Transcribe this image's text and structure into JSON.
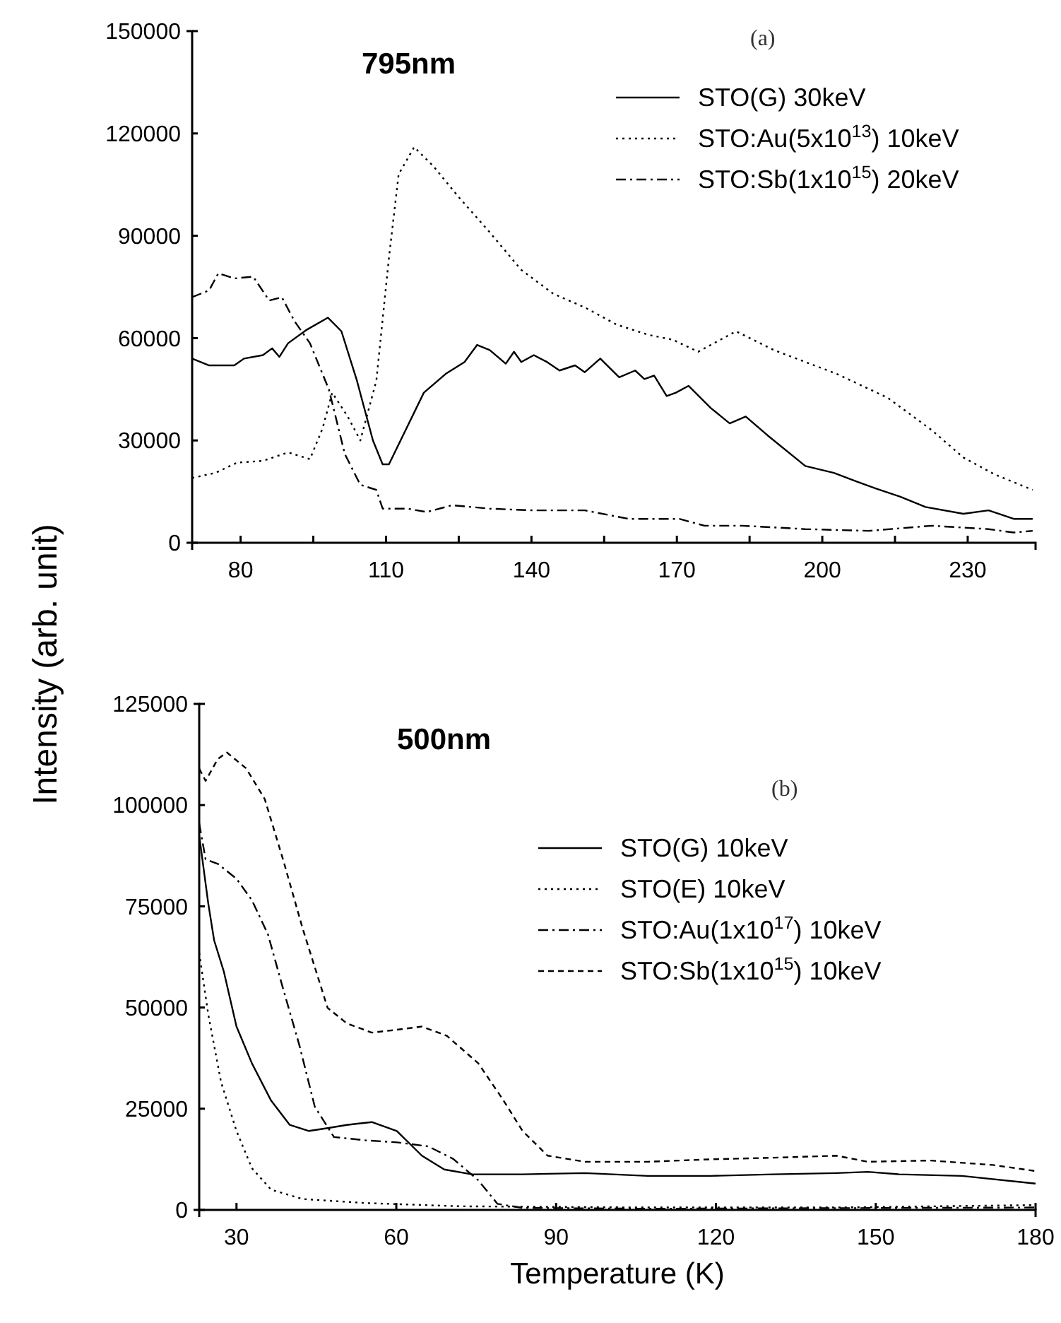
{
  "chart_data": [
    {
      "type": "line",
      "title": "795nm",
      "ylabel": "Intensity (arb. unit)",
      "annotations": [
        "(a)"
      ],
      "xlim": [
        70,
        244
      ],
      "ylim": [
        0,
        150000
      ],
      "xticks": [
        80,
        {
          "value": 95,
          "label": null
        },
        110,
        {
          "value": 125,
          "label": null
        },
        140,
        {
          "value": 155,
          "label": null
        },
        170,
        {
          "value": 185,
          "label": null
        },
        200,
        {
          "value": 215,
          "label": null
        },
        230
      ],
      "yticks": [
        0,
        30000,
        60000,
        90000,
        120000,
        150000
      ],
      "legend": "top right",
      "grid": false,
      "series": [
        {
          "name": "STO(G) 30keV",
          "color": "#000000",
          "line_style": "solid",
          "x": [
            70,
            73.5,
            78.7,
            80.7,
            84.6,
            86.5,
            88,
            89.8,
            93.7,
            98,
            100.8,
            104,
            107.3,
            109.3,
            110.6,
            117.8,
            122.3,
            126.2,
            128.8,
            131.4,
            134.7,
            136.4,
            137.9,
            140.5,
            143.2,
            145.8,
            149,
            151,
            154.2,
            158.1,
            161.4,
            163.3,
            165.3,
            167.9,
            169.8,
            172.4,
            177,
            180.9,
            184.2,
            188.7,
            196.5,
            202.4,
            207,
            210.9,
            216.1,
            221.3,
            229.1,
            234.3,
            239.5,
            243.4
          ],
          "values": [
            54000,
            52000,
            52000,
            54000,
            55000,
            57000,
            54500,
            58500,
            62500,
            66000,
            62000,
            47500,
            30000,
            23000,
            23000,
            44000,
            49500,
            53000,
            58000,
            56500,
            52500,
            56000,
            53000,
            55000,
            53000,
            50500,
            52000,
            50000,
            54000,
            48500,
            50500,
            48000,
            49000,
            43000,
            44000,
            46000,
            39500,
            35000,
            37000,
            31500,
            22500,
            20500,
            18000,
            16000,
            13500,
            10500,
            8500,
            9500,
            7000,
            7000
          ]
        },
        {
          "name": "STO:Au(5x10$^{13}$) 10keV",
          "color": "#000000",
          "line_style": "dotted",
          "x": [
            70,
            74.8,
            79.3,
            84.6,
            89.8,
            94.3,
            96.9,
            98.9,
            102.1,
            104.7,
            108,
            110.6,
            112.6,
            115.8,
            119.7,
            124.9,
            131.4,
            137.9,
            144.5,
            151,
            157.5,
            164,
            169.2,
            174.4,
            182.2,
            190,
            203,
            213.5,
            222.6,
            229.1,
            235.6,
            243.4
          ],
          "values": [
            19000,
            20500,
            23500,
            24000,
            26500,
            24500,
            33500,
            44000,
            37000,
            30000,
            47500,
            83500,
            108000,
            116000,
            110500,
            101500,
            91000,
            80000,
            73000,
            69000,
            64000,
            61000,
            59500,
            56000,
            62000,
            56500,
            49500,
            42500,
            33000,
            25000,
            20000,
            15500
          ]
        },
        {
          "name": "STO:Sb(1x10$^{15}$) 20keV",
          "color": "#000000",
          "line_style": "dashdot",
          "x": [
            70,
            73.5,
            75.4,
            78.7,
            82.6,
            85.9,
            88.5,
            91.1,
            94.3,
            98.2,
            101.5,
            104.7,
            108,
            109.3,
            114.5,
            118.4,
            123.6,
            131.4,
            140.5,
            151,
            160.1,
            170.5,
            175.7,
            183.5,
            196.5,
            209.6,
            222.6,
            234.3,
            239.5,
            243.4
          ],
          "values": [
            72000,
            74000,
            79000,
            77500,
            78000,
            71000,
            72000,
            65000,
            58500,
            45000,
            26000,
            17000,
            15500,
            10000,
            10000,
            9000,
            11000,
            10000,
            9500,
            9500,
            7000,
            7000,
            5000,
            5000,
            4000,
            3500,
            5000,
            4000,
            3000,
            3500
          ]
        }
      ]
    },
    {
      "type": "line",
      "title": "500nm",
      "xlabel": "Temperature (K)",
      "annotations": [
        "(b)"
      ],
      "xlim": [
        23,
        180
      ],
      "ylim": [
        0,
        125000
      ],
      "xticks": [
        30,
        60,
        90,
        120,
        150,
        180
      ],
      "yticks": [
        0,
        25000,
        50000,
        75000,
        100000,
        125000
      ],
      "legend": "right",
      "grid": false,
      "series": [
        {
          "name": "STO(G) 10keV",
          "color": "#000000",
          "line_style": "solid",
          "x": [
            23,
            24.7,
            25.8,
            27.6,
            30,
            32.9,
            36.5,
            40,
            43.6,
            47.1,
            50.7,
            55.4,
            60.1,
            64.8,
            69,
            74.2,
            83.7,
            95.4,
            107.2,
            119,
            130.8,
            142.6,
            148.5,
            154.4,
            166.2,
            180
          ],
          "values": [
            92500,
            75700,
            66600,
            59000,
            45300,
            36200,
            27000,
            21000,
            19500,
            20200,
            21000,
            21700,
            19500,
            13400,
            10000,
            8800,
            8800,
            9100,
            8400,
            8400,
            8800,
            9100,
            9400,
            8800,
            8400,
            6500
          ]
        },
        {
          "name": "STO(E) 10keV",
          "color": "#000000",
          "line_style": "dotted",
          "x": [
            23,
            24.7,
            27.1,
            30,
            32.9,
            36.5,
            42.4,
            54.2,
            71.9,
            107.2,
            142.6,
            180
          ],
          "values": [
            63500,
            48300,
            31600,
            19500,
            10300,
            5000,
            2700,
            1700,
            900,
            600,
            600,
            1200
          ]
        },
        {
          "name": "STO:Au(1x10$^{17}$) 10keV",
          "color": "#000000",
          "line_style": "dashdot",
          "x": [
            23,
            24.2,
            26.5,
            30,
            32.9,
            35.9,
            38.8,
            41.8,
            44.7,
            48.3,
            54.2,
            60.1,
            66,
            70.7,
            75.4,
            79,
            83.7,
            107.2,
            180
          ],
          "values": [
            95500,
            86600,
            85500,
            81800,
            76500,
            68100,
            54400,
            40700,
            25500,
            18000,
            17200,
            16700,
            15700,
            12600,
            7300,
            1500,
            500,
            300,
            600
          ]
        },
        {
          "name": "STO:Sb(1x10$^{15}$) 10keV",
          "color": "#000000",
          "line_style": "dashed",
          "x": [
            23,
            24.2,
            26.5,
            28.2,
            31.8,
            35.3,
            38.8,
            42.4,
            47.1,
            50.7,
            55.4,
            60.1,
            64.8,
            69.5,
            75.4,
            80.1,
            83.7,
            88.4,
            95.4,
            107.2,
            119,
            130.8,
            142.6,
            148.5,
            160.3,
            172,
            180
          ],
          "values": [
            109000,
            106000,
            111400,
            113000,
            109100,
            101500,
            86300,
            69600,
            49900,
            46100,
            43800,
            44500,
            45300,
            43000,
            36200,
            27100,
            19500,
            13400,
            11900,
            11900,
            12500,
            12900,
            13400,
            11900,
            12200,
            11100,
            9600
          ]
        }
      ]
    }
  ]
}
